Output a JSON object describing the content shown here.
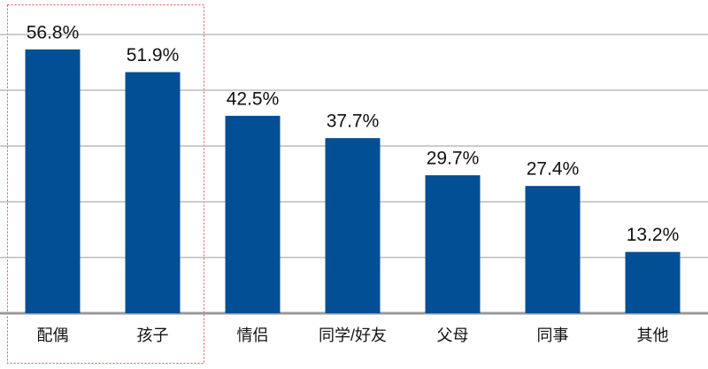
{
  "chart_data": {
    "type": "bar",
    "categories": [
      "配偶",
      "孩子",
      "情侣",
      "同学/好友",
      "父母",
      "同事",
      "其他"
    ],
    "values": [
      56.8,
      51.9,
      42.5,
      37.7,
      29.7,
      27.4,
      13.2
    ],
    "value_labels": [
      "56.8%",
      "51.9%",
      "42.5%",
      "37.7%",
      "29.7%",
      "27.4%",
      "13.2%"
    ],
    "color": "#034f96",
    "ylim": [
      0,
      60
    ],
    "yticks": [
      0,
      12,
      24,
      36,
      48,
      60
    ],
    "grid": true
  }
}
